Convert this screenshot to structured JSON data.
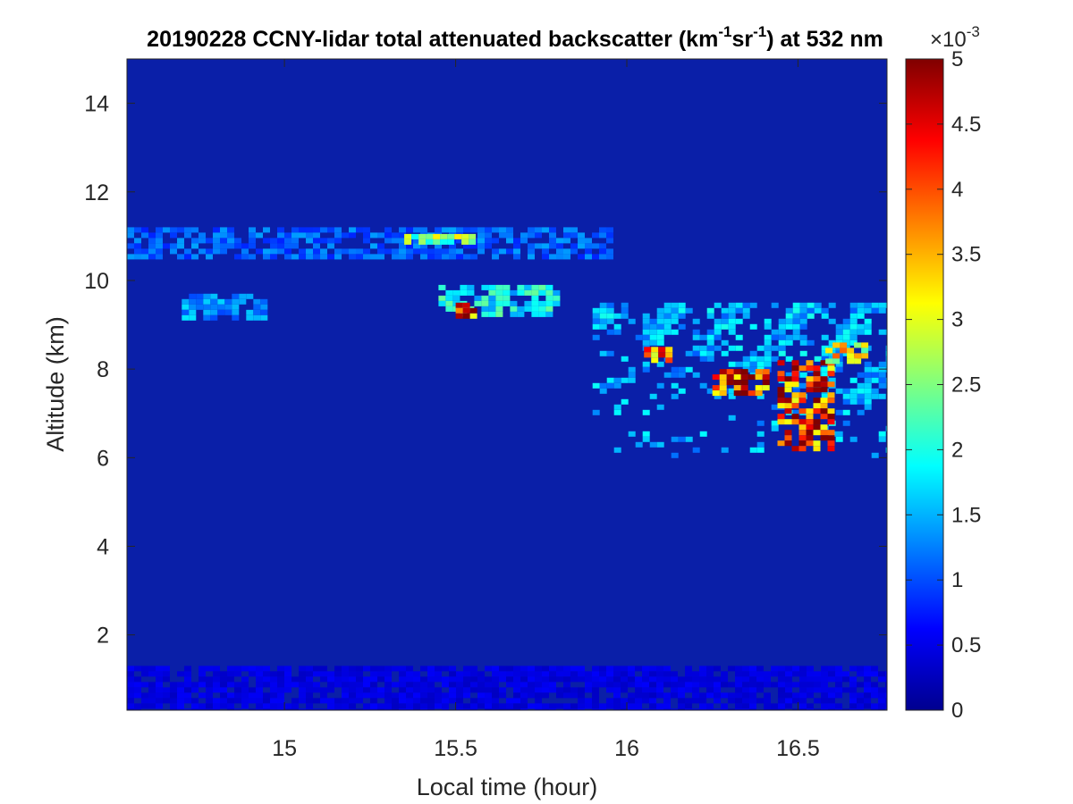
{
  "chart_data": {
    "type": "heatmap",
    "title": {
      "main": "20190228 CCNY-lidar total attenuated backscatter (km",
      "sup1": "-1",
      "mid": "sr",
      "sup2": "-1",
      "tail": ") at 532 nm"
    },
    "xlabel": "Local time (hour)",
    "ylabel": "Altitude (km)",
    "xlim": [
      14.54,
      16.76
    ],
    "ylim": [
      0.3,
      15
    ],
    "xticks": [
      15,
      15.5,
      16,
      16.5
    ],
    "xtick_labels": [
      "15",
      "15.5",
      "16",
      "16.5"
    ],
    "yticks": [
      2,
      4,
      6,
      8,
      10,
      12,
      14
    ],
    "ytick_labels": [
      "2",
      "4",
      "6",
      "8",
      "10",
      "12",
      "14"
    ],
    "colormap": "jet",
    "colorbar": {
      "range": [
        0,
        5
      ],
      "ticks": [
        0,
        0.5,
        1,
        1.5,
        2,
        2.5,
        3,
        3.5,
        4,
        4.5,
        5
      ],
      "tick_labels": [
        "0",
        "0.5",
        "1",
        "1.5",
        "2",
        "2.5",
        "3",
        "3.5",
        "4",
        "4.5",
        "5"
      ],
      "exponent_base": "×10",
      "exponent_power": "-3"
    },
    "background_level": 0.25,
    "features": [
      {
        "name": "boundary layer",
        "x": [
          14.54,
          16.76
        ],
        "y": [
          0.3,
          1.3
        ],
        "level": 0.55
      },
      {
        "name": "upper cirrus band",
        "x": [
          14.54,
          15.95
        ],
        "y": [
          10.5,
          11.2
        ],
        "level": 1.3
      },
      {
        "name": "cirrus patch",
        "x": [
          15.35,
          15.55
        ],
        "y": [
          10.9,
          11.05
        ],
        "level": 3.0
      },
      {
        "name": "mid cloud",
        "x": [
          14.7,
          14.95
        ],
        "y": [
          9.2,
          9.7
        ],
        "level": 1.6
      },
      {
        "name": "mid cloud",
        "x": [
          15.45,
          15.8
        ],
        "y": [
          9.2,
          9.9
        ],
        "level": 2.2
      },
      {
        "name": "dense core",
        "x": [
          15.5,
          15.55
        ],
        "y": [
          9.2,
          9.5
        ],
        "level": 5.0
      },
      {
        "name": "descending fall streaks",
        "x": [
          15.9,
          16.76
        ],
        "y": [
          6.0,
          9.5
        ],
        "level": 1.8
      },
      {
        "name": "dense core",
        "x": [
          16.25,
          16.4
        ],
        "y": [
          7.4,
          8.0
        ],
        "level": 5.0
      },
      {
        "name": "dense core",
        "x": [
          16.44,
          16.6
        ],
        "y": [
          6.2,
          8.2
        ],
        "level": 5.0
      },
      {
        "name": "dense core",
        "x": [
          16.05,
          16.12
        ],
        "y": [
          8.2,
          8.5
        ],
        "level": 4.8
      },
      {
        "name": "bright patch",
        "x": [
          16.58,
          16.7
        ],
        "y": [
          8.2,
          8.6
        ],
        "level": 3.6
      }
    ]
  }
}
